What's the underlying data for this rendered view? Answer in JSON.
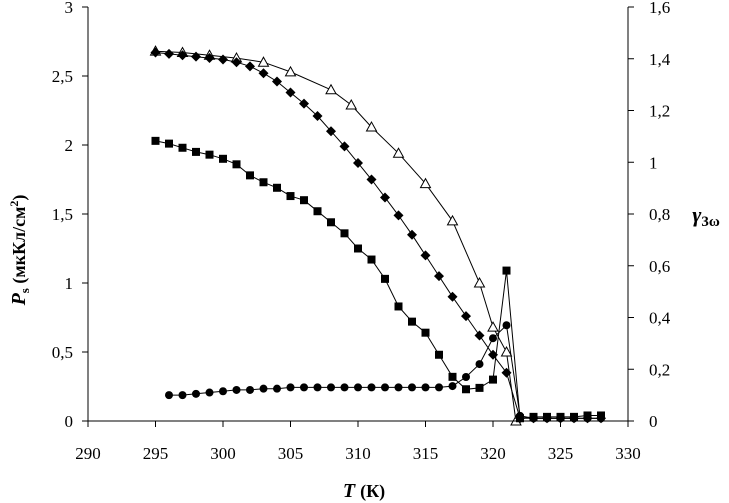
{
  "chart_data": {
    "type": "line",
    "x_axis": {
      "label": "T",
      "label_unit": "(К)",
      "range": [
        290,
        330
      ],
      "ticks": [
        "290",
        "295",
        "300",
        "305",
        "310",
        "315",
        "320",
        "325",
        "330"
      ],
      "tick_values": [
        290,
        295,
        300,
        305,
        310,
        315,
        320,
        325,
        330
      ]
    },
    "y_axis_left": {
      "label": "P",
      "label_subscript": "s",
      "label_unit": "(мкКл/см",
      "label_unit_sup": "2",
      "label_unit_close": ")",
      "range": [
        0,
        3
      ],
      "ticks": [
        "0",
        "0,5",
        "1",
        "1,5",
        "2",
        "2,5",
        "3"
      ],
      "tick_values": [
        0,
        0.5,
        1,
        1.5,
        2,
        2.5,
        3
      ]
    },
    "y_axis_right": {
      "label": "γ",
      "label_subscript": "3ω",
      "range": [
        0,
        1.6
      ],
      "ticks": [
        "0",
        "0,2",
        "0,4",
        "0,6",
        "0,8",
        "1",
        "1,2",
        "1,4",
        "1,6"
      ],
      "tick_values": [
        0,
        0.2,
        0.4,
        0.6,
        0.8,
        1.0,
        1.2,
        1.4,
        1.6
      ]
    },
    "grid": false,
    "legend": "none",
    "series": [
      {
        "marker": "open-triangle",
        "axis": "left",
        "x": [
          295,
          297,
          299,
          301,
          303,
          305,
          308,
          309.5,
          311,
          313,
          315,
          317,
          319,
          320,
          321,
          321.7
        ],
        "y": [
          2.68,
          2.67,
          2.65,
          2.63,
          2.6,
          2.53,
          2.4,
          2.29,
          2.13,
          1.94,
          1.72,
          1.45,
          1.0,
          0.68,
          0.5,
          0.0
        ]
      },
      {
        "marker": "diamond",
        "axis": "left",
        "x": [
          295,
          296,
          297,
          298,
          299,
          300,
          301,
          302,
          303,
          304,
          305,
          306,
          307,
          308,
          309,
          310,
          311,
          312,
          313,
          314,
          315,
          316,
          317,
          318,
          319,
          320,
          321,
          322,
          323,
          324,
          325,
          326,
          327,
          328
        ],
        "y": [
          2.67,
          2.66,
          2.65,
          2.64,
          2.63,
          2.62,
          2.6,
          2.57,
          2.52,
          2.46,
          2.38,
          2.3,
          2.21,
          2.1,
          1.99,
          1.87,
          1.75,
          1.62,
          1.49,
          1.35,
          1.2,
          1.05,
          0.9,
          0.76,
          0.62,
          0.48,
          0.35,
          0.02,
          0.02,
          0.02,
          0.02,
          0.02,
          0.02,
          0.02
        ]
      },
      {
        "marker": "square",
        "axis": "left",
        "x": [
          295,
          296,
          297,
          298,
          299,
          300,
          301,
          302,
          303,
          304,
          305,
          306,
          307,
          308,
          309,
          310,
          311,
          312,
          313,
          314,
          315,
          316,
          317,
          318,
          319,
          320,
          321,
          322,
          323,
          324,
          325,
          326,
          327,
          328
        ],
        "y": [
          2.03,
          2.01,
          1.98,
          1.95,
          1.93,
          1.9,
          1.86,
          1.78,
          1.73,
          1.69,
          1.63,
          1.6,
          1.52,
          1.44,
          1.36,
          1.25,
          1.17,
          1.03,
          0.83,
          0.72,
          0.64,
          0.48,
          0.32,
          0.23,
          0.24,
          0.3,
          1.09,
          0.02,
          0.03,
          0.03,
          0.03,
          0.03,
          0.04,
          0.04
        ]
      },
      {
        "marker": "circle",
        "axis": "right",
        "x": [
          296,
          297,
          298,
          299,
          300,
          301,
          302,
          303,
          304,
          305,
          306,
          307,
          308,
          309,
          310,
          311,
          312,
          313,
          314,
          315,
          316,
          317,
          318,
          319,
          320,
          321,
          322,
          323,
          324,
          325,
          326,
          327,
          328
        ],
        "y": [
          0.1,
          0.1,
          0.105,
          0.11,
          0.115,
          0.12,
          0.12,
          0.125,
          0.125,
          0.13,
          0.13,
          0.13,
          0.13,
          0.13,
          0.13,
          0.13,
          0.13,
          0.13,
          0.13,
          0.13,
          0.13,
          0.135,
          0.17,
          0.22,
          0.32,
          0.37,
          0.02,
          0.01,
          0.01,
          0.01,
          0.01,
          0.01,
          0.01
        ]
      }
    ]
  }
}
